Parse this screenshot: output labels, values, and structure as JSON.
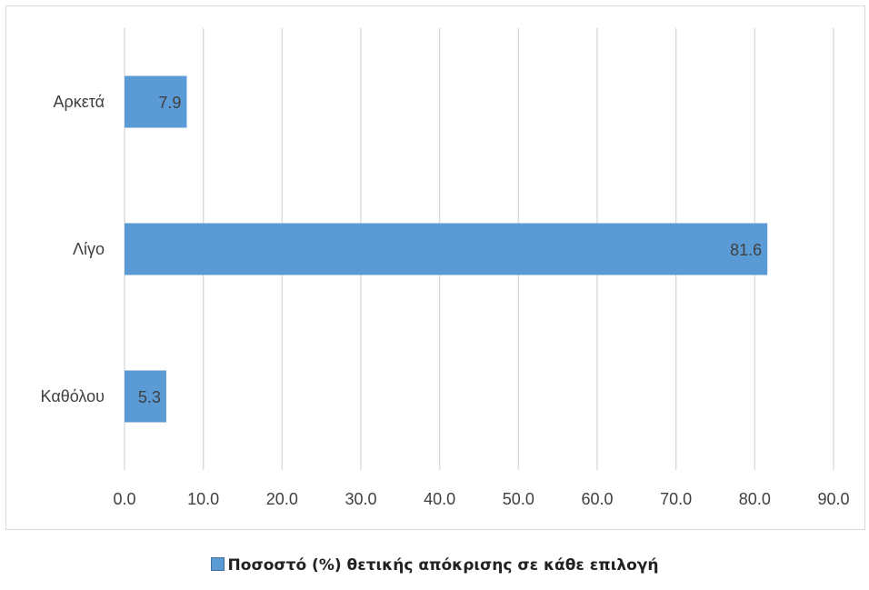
{
  "chart_data": {
    "type": "bar",
    "orientation": "horizontal",
    "categories": [
      "Αρκετά",
      "Λίγο",
      "Καθόλου"
    ],
    "series": [
      {
        "name": "Ποσοστό (%) θετικής απόκρισης σε κάθε επιλογή",
        "values": [
          7.9,
          81.6,
          5.3
        ]
      }
    ],
    "data_labels": [
      "7.9",
      "81.6",
      "5.3"
    ],
    "xlim": [
      0,
      90
    ],
    "xticks": [
      "0.0",
      "10.0",
      "20.0",
      "30.0",
      "40.0",
      "50.0",
      "60.0",
      "70.0",
      "80.0",
      "90.0"
    ],
    "grid": true,
    "legend_position": "bottom",
    "title": "",
    "xlabel": "",
    "ylabel": ""
  },
  "colors": {
    "bar": "#5b9bd5",
    "grid": "#d9d9d9",
    "text": "#404040"
  }
}
